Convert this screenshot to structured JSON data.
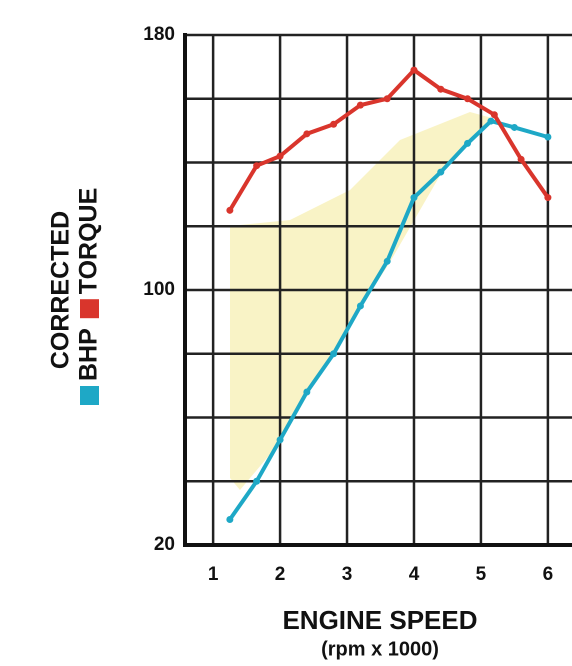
{
  "chart_data": {
    "type": "line",
    "ylabel": "CORRECTED",
    "xlabel": "ENGINE SPEED",
    "xlabel_sub": "(rpm x 1000)",
    "series": [
      {
        "name": "BHP",
        "color": "#1ea8c6",
        "x": [
          1.25,
          1.65,
          2.0,
          2.4,
          2.8,
          3.2,
          3.6,
          4.0,
          4.4,
          4.8,
          5.15,
          5.5,
          6.0
        ],
        "values": [
          28,
          40,
          53,
          68,
          80,
          95,
          109,
          129,
          137,
          146,
          153,
          151,
          148
        ]
      },
      {
        "name": "TORQUE",
        "color": "#d9352c",
        "x": [
          1.25,
          1.65,
          2.0,
          2.4,
          2.8,
          3.2,
          3.6,
          4.0,
          4.4,
          4.8,
          5.2,
          5.6,
          6.0
        ],
        "values": [
          125,
          139,
          142,
          149,
          152,
          158,
          160,
          169,
          163,
          160,
          155,
          141,
          129
        ]
      }
    ],
    "xlim": [
      0.58,
      6.36
    ],
    "xticks": [
      1,
      2,
      3,
      4,
      5,
      6
    ],
    "ylim": [
      20,
      180
    ],
    "yticks": [
      20,
      100,
      180
    ],
    "ygrid": [
      20,
      40,
      60,
      80,
      100,
      120,
      140,
      160,
      180
    ],
    "grid": true
  }
}
